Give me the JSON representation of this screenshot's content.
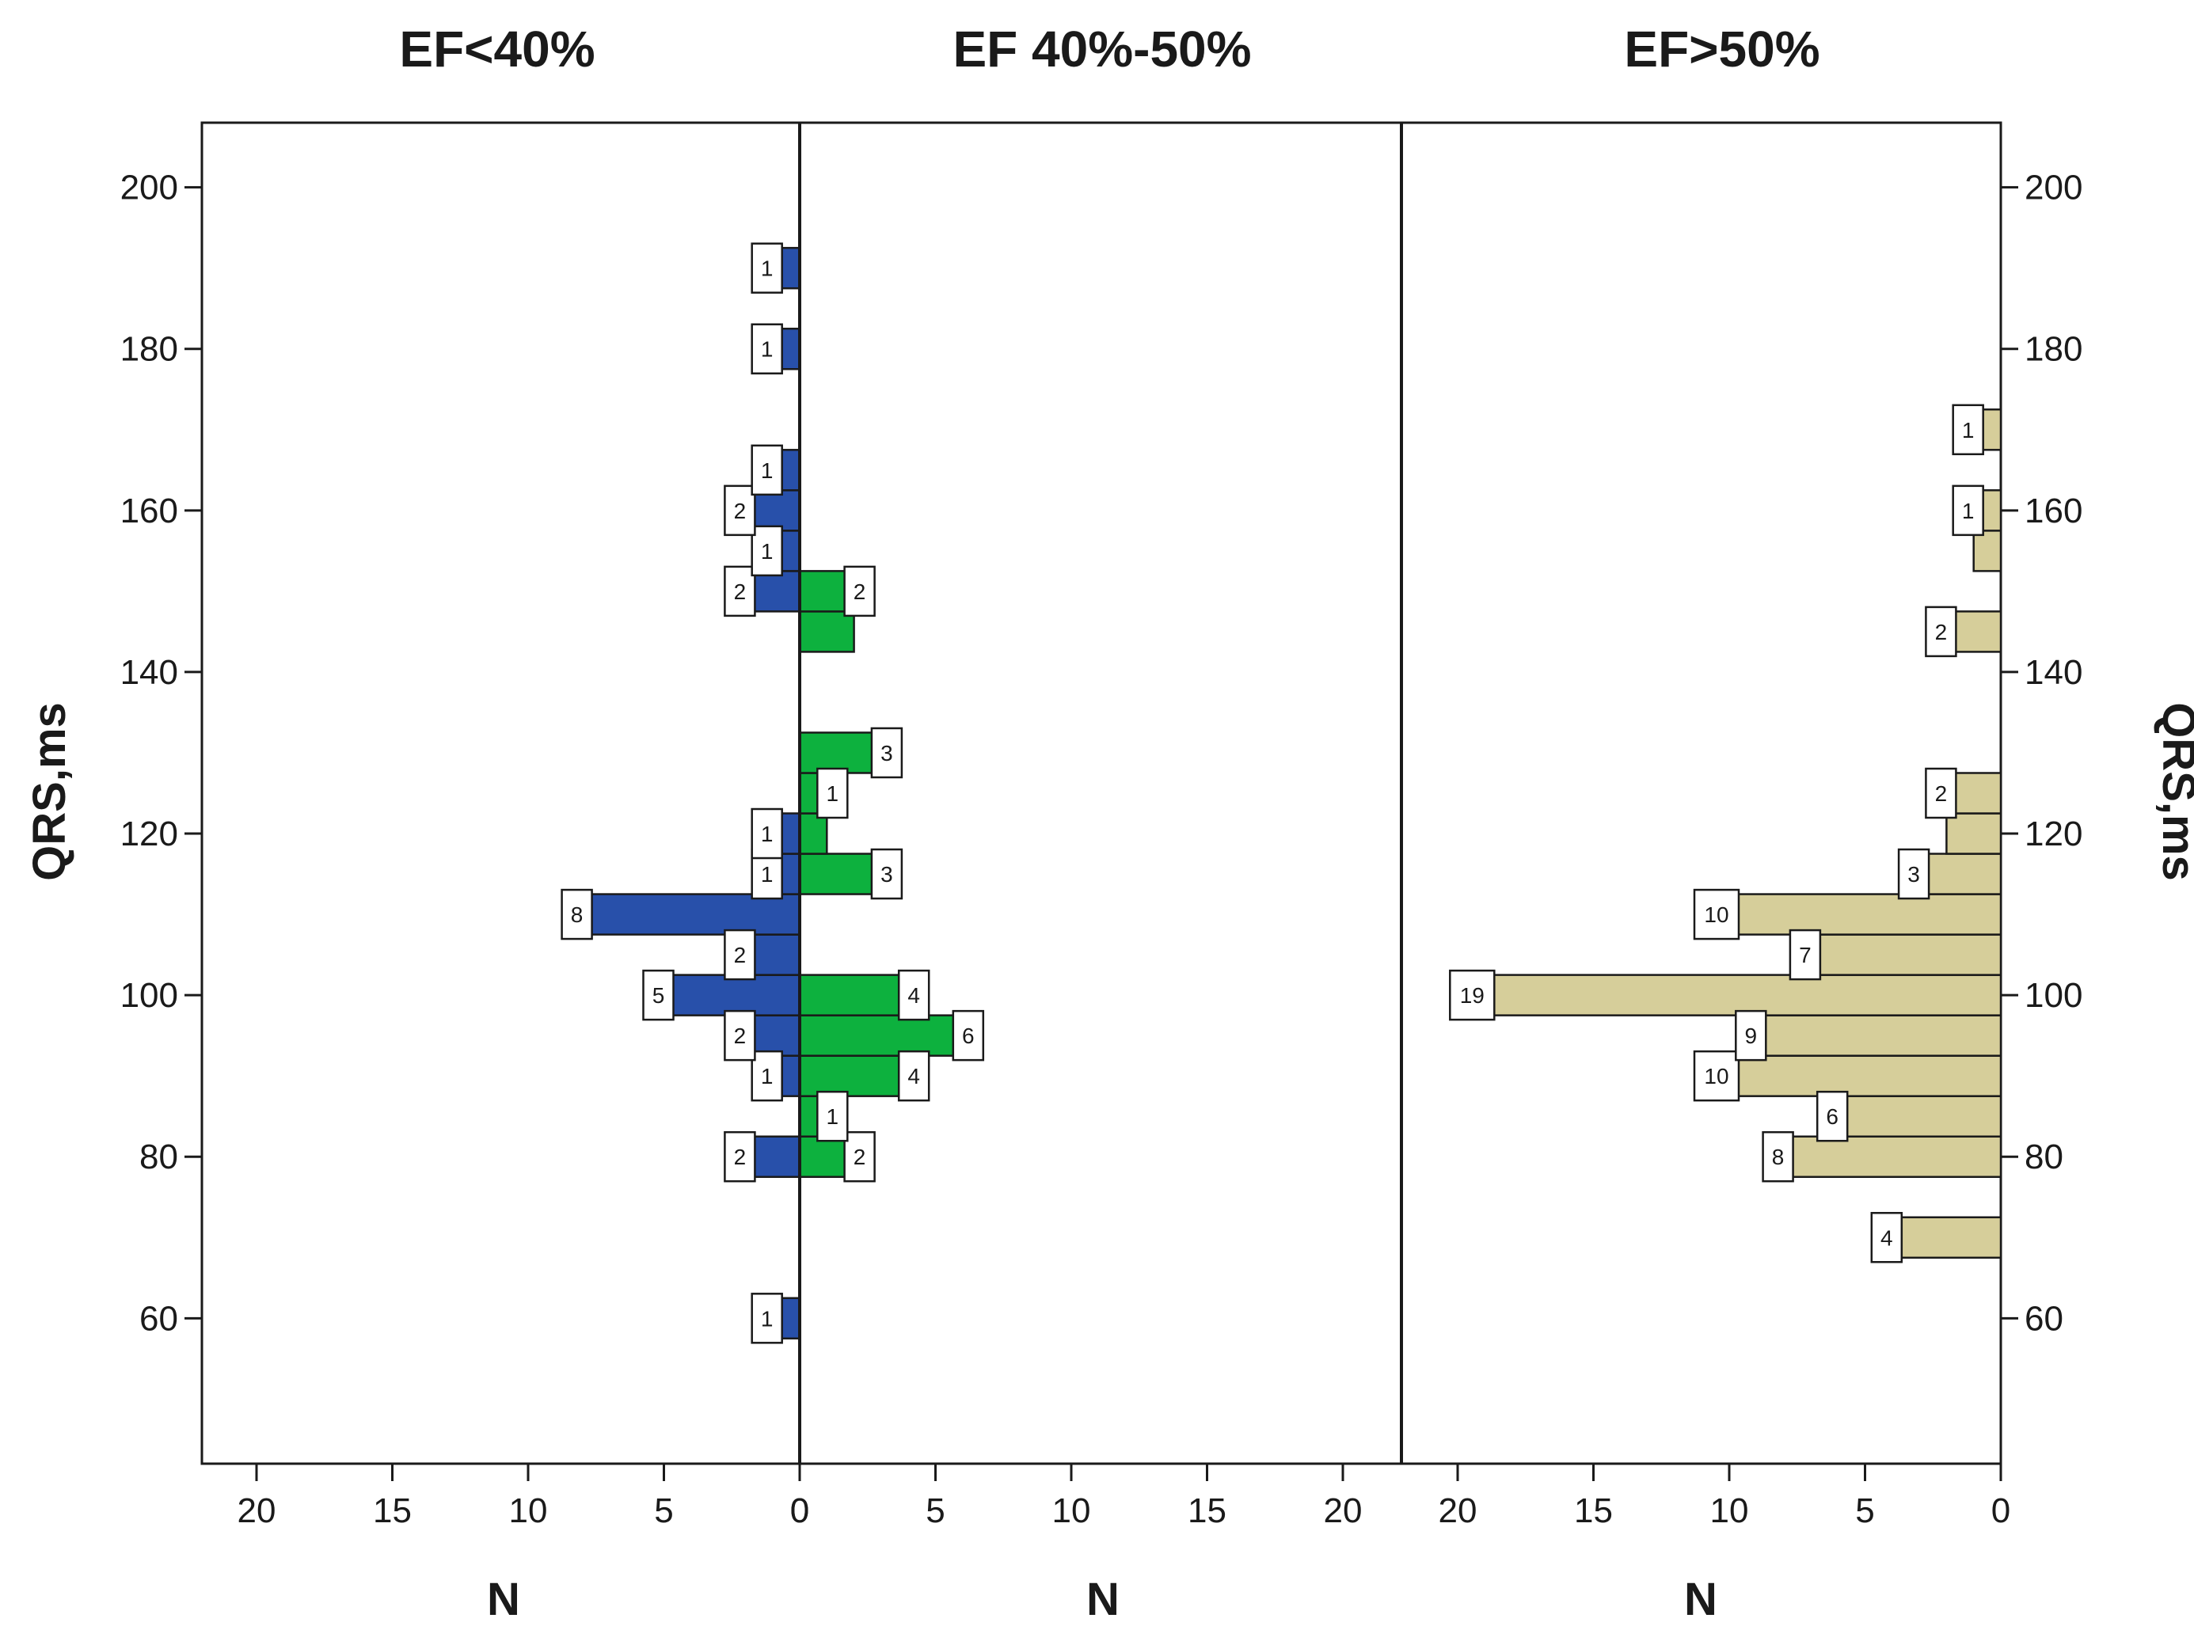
{
  "chart_data": {
    "type": "bar",
    "orientation": "horizontal",
    "title": "",
    "ylabel": "QRS,ms",
    "ylim": [
      42,
      208
    ],
    "yticks": [
      60,
      80,
      100,
      120,
      140,
      160,
      180,
      200
    ],
    "bin_width": 5,
    "panels": [
      {
        "title": "EF<40%",
        "color": "#2850AA",
        "direction": "left",
        "xlabel": "N",
        "xlim": [
          0,
          22.2
        ],
        "xticks": [
          0,
          5,
          10,
          15,
          20
        ],
        "bins": [
          60,
          80,
          90,
          95,
          100,
          105,
          110,
          115,
          120,
          150,
          155,
          160,
          165,
          180,
          190
        ],
        "values": [
          1,
          2,
          1,
          2,
          5,
          2,
          8,
          1,
          1,
          2,
          1,
          2,
          1,
          1,
          1
        ]
      },
      {
        "title": "EF 40%-50%",
        "color": "#0DB13E",
        "direction": "right",
        "xlabel": "N",
        "xlim": [
          0,
          22.2
        ],
        "xticks": [
          0,
          5,
          10,
          15,
          20
        ],
        "bins": [
          80,
          85,
          90,
          95,
          100,
          115,
          120,
          125,
          130,
          145,
          150
        ],
        "values": [
          2,
          1,
          4,
          6,
          4,
          3,
          1,
          1,
          3,
          2,
          2
        ],
        "labels": [
          2,
          1,
          4,
          6,
          4,
          3,
          null,
          1,
          3,
          null,
          2
        ]
      },
      {
        "title": "EF>50%",
        "color": "#D6CE9A",
        "direction": "left",
        "xlabel": "N",
        "xlim": [
          0,
          22.2
        ],
        "xticks": [
          0,
          5,
          10,
          15,
          20
        ],
        "bins": [
          70,
          80,
          85,
          90,
          95,
          100,
          105,
          110,
          115,
          120,
          125,
          145,
          155,
          160,
          170
        ],
        "values": [
          4,
          8,
          6,
          10,
          9,
          19,
          7,
          10,
          3,
          2,
          2,
          2,
          1,
          1,
          1
        ],
        "labels": [
          4,
          8,
          6,
          10,
          9,
          19,
          7,
          10,
          3,
          null,
          2,
          2,
          null,
          1,
          1
        ]
      }
    ]
  }
}
